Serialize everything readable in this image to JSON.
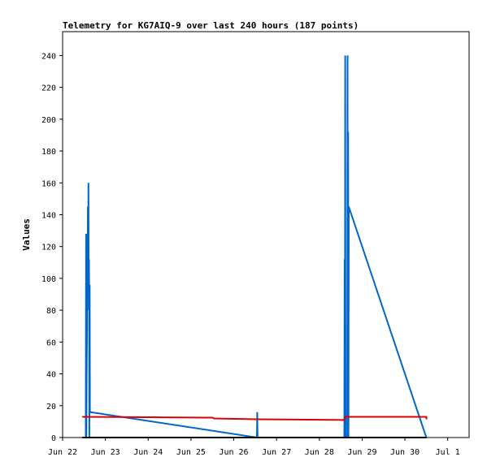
{
  "chart_data": {
    "type": "line",
    "title": "Telemetry for KG7AIQ-9 over last 240 hours (187 points)",
    "xlabel": "",
    "ylabel": "Values",
    "ylim": [
      0,
      255
    ],
    "xlim": [
      "2024-06-22T00:00",
      "2024-07-01T12:00"
    ],
    "grid": false,
    "legend": "none",
    "x_ticks": [
      {
        "t": "2024-06-22T00:00",
        "label": "Jun 22"
      },
      {
        "t": "2024-06-23T00:00",
        "label": "Jun 23"
      },
      {
        "t": "2024-06-24T00:00",
        "label": "Jun 24"
      },
      {
        "t": "2024-06-25T00:00",
        "label": "Jun 25"
      },
      {
        "t": "2024-06-26T00:00",
        "label": "Jun 26"
      },
      {
        "t": "2024-06-27T00:00",
        "label": "Jun 27"
      },
      {
        "t": "2024-06-28T00:00",
        "label": "Jun 28"
      },
      {
        "t": "2024-06-29T00:00",
        "label": "Jun 29"
      },
      {
        "t": "2024-06-30T00:00",
        "label": "Jun 30"
      },
      {
        "t": "2024-07-01T00:00",
        "label": "Jul 1"
      }
    ],
    "y_ticks": [
      0,
      20,
      40,
      60,
      80,
      100,
      120,
      140,
      160,
      180,
      200,
      220,
      240
    ],
    "series": [
      {
        "color": "#0066cc",
        "points": [
          [
            "2024-06-22T13:00",
            0
          ],
          [
            "2024-06-22T13:10",
            128
          ],
          [
            "2024-06-22T13:20",
            0
          ],
          [
            "2024-06-22T13:30",
            40
          ],
          [
            "2024-06-22T13:40",
            67
          ],
          [
            "2024-06-22T13:50",
            120
          ],
          [
            "2024-06-22T14:00",
            93
          ],
          [
            "2024-06-22T14:10",
            145
          ],
          [
            "2024-06-22T14:20",
            100
          ],
          [
            "2024-06-22T14:30",
            160
          ],
          [
            "2024-06-22T14:40",
            80
          ],
          [
            "2024-06-22T14:50",
            112
          ],
          [
            "2024-06-22T15:00",
            0
          ],
          [
            "2024-06-22T15:10",
            96
          ],
          [
            "2024-06-22T15:20",
            16
          ],
          [
            "2024-06-26T13:00",
            0
          ],
          [
            "2024-06-26T13:10",
            16
          ],
          [
            "2024-06-26T13:20",
            0
          ],
          [
            "2024-06-28T14:00",
            0
          ],
          [
            "2024-06-28T14:10",
            112
          ],
          [
            "2024-06-28T14:20",
            0
          ],
          [
            "2024-06-28T14:30",
            240
          ],
          [
            "2024-06-28T14:40",
            0
          ],
          [
            "2024-06-28T15:40",
            0
          ],
          [
            "2024-06-28T15:50",
            240
          ],
          [
            "2024-06-28T16:00",
            0
          ],
          [
            "2024-06-28T16:10",
            192
          ],
          [
            "2024-06-28T16:20",
            0
          ],
          [
            "2024-06-28T16:30",
            145
          ],
          [
            "2024-06-30T12:00",
            0
          ]
        ]
      },
      {
        "color": "#dd0000",
        "points": [
          [
            "2024-06-22T11:00",
            13
          ],
          [
            "2024-06-25T12:00",
            12.5
          ],
          [
            "2024-06-25T13:00",
            12
          ],
          [
            "2024-06-26T13:00",
            11.5
          ],
          [
            "2024-06-28T14:00",
            11
          ],
          [
            "2024-06-28T14:30",
            13
          ],
          [
            "2024-06-30T12:00",
            13
          ],
          [
            "2024-06-30T12:10",
            11.5
          ]
        ]
      },
      {
        "color": "#000000",
        "points": [
          [
            "2024-06-22T11:00",
            0
          ],
          [
            "2024-06-30T12:10",
            0
          ]
        ]
      }
    ]
  }
}
